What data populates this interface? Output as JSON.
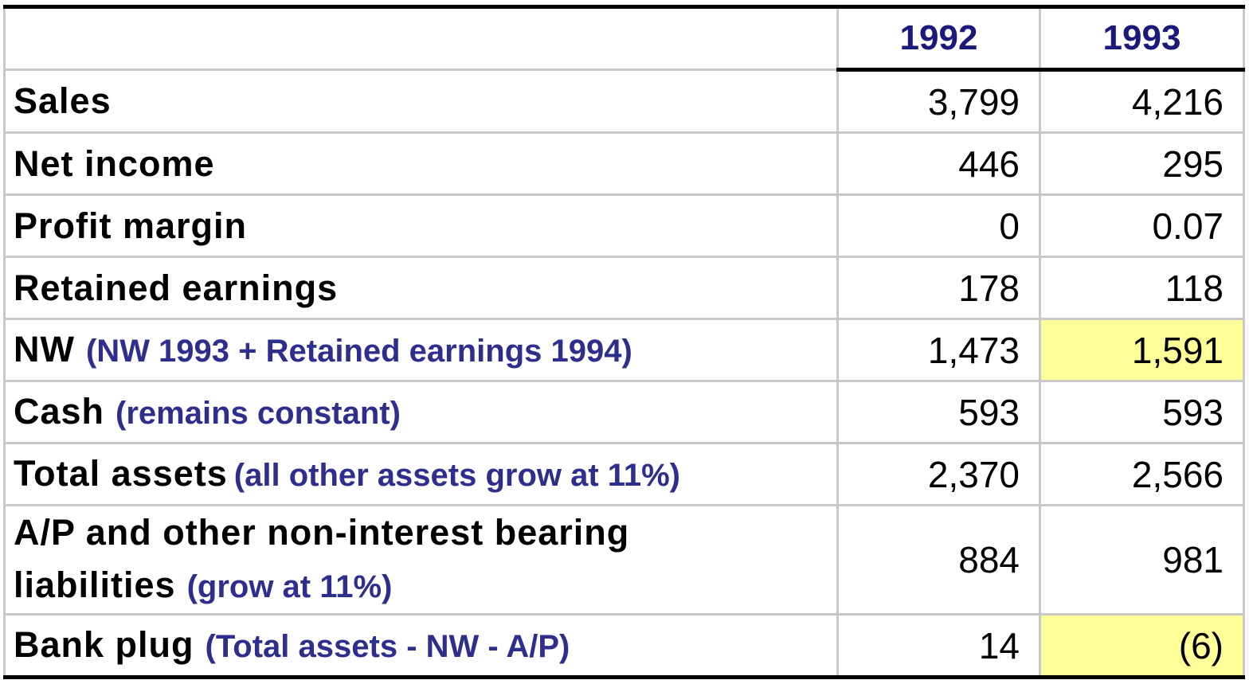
{
  "header": {
    "years": [
      "1992",
      "1993"
    ]
  },
  "rows": [
    {
      "label": "Sales",
      "note": "",
      "v1992": "3,799",
      "v1993": "4,216"
    },
    {
      "label": "Net income",
      "note": "",
      "v1992": "446",
      "v1993": "295"
    },
    {
      "label": "Profit margin",
      "note": "",
      "v1992": "0",
      "v1993": "0.07"
    },
    {
      "label": "Retained earnings",
      "note": "",
      "v1992": "178",
      "v1993": "118"
    },
    {
      "label": "NW",
      "note": "(NW 1993 + Retained earnings 1994)",
      "v1992": "1,473",
      "v1993": "1,591"
    },
    {
      "label": "Cash",
      "note": "(remains constant)",
      "v1992": "593",
      "v1993": "593"
    },
    {
      "label": "Total assets",
      "note": "(all other assets grow at 11%)",
      "v1992": "2,370",
      "v1993": "2,566"
    },
    {
      "label_line1": "A/P and other non-interest bearing",
      "label_line2": "liabilities",
      "note": "(grow at 11%)",
      "v1992": "884",
      "v1993": "981"
    },
    {
      "label": "Bank plug",
      "note": "(Total assets - NW - A/P)",
      "v1992": "14",
      "v1993": "(6)"
    }
  ],
  "colors": {
    "highlight": "#ffff99",
    "header_text": "#1a1a7a",
    "note_text": "#2e2e8c"
  }
}
